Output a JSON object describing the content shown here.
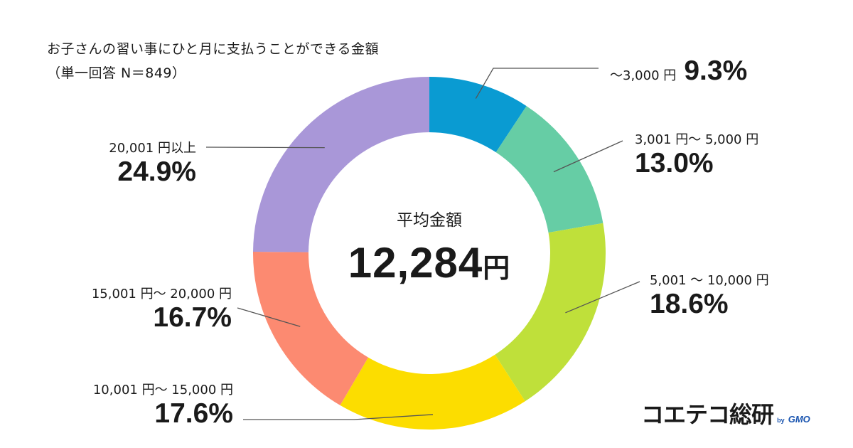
{
  "title_line1": "お子さんの習い事にひと月に支払うことができる金額",
  "title_line2": "（単一回答 N＝849）",
  "center_label": "平均金額",
  "center_value": "12,284",
  "center_unit": "円",
  "logo_text": "コエテコ総研",
  "logo_by": "by",
  "logo_gmo": "GMO",
  "chart_data": {
    "type": "pie",
    "title": "お子さんの習い事にひと月に支払うことができる金額",
    "subtitle": "（単一回答 N＝849）",
    "categories": [
      "～3,000 円",
      "3,001 円～ 5,000 円",
      "5,001 ～ 10,000 円",
      "10,001 円～ 15,000 円",
      "15,001 円～ 20,000 円",
      "20,001 円以上"
    ],
    "values": [
      9.3,
      13.0,
      18.6,
      17.6,
      16.7,
      24.9
    ],
    "labels": [
      "9.3%",
      "13.0%",
      "18.6%",
      "17.6%",
      "16.7%",
      "24.9%"
    ],
    "colors": [
      "#0a9bd2",
      "#66cda5",
      "#bfe03a",
      "#fcdd00",
      "#fc8a71",
      "#a997d8"
    ],
    "donut": true,
    "center_annotation": "平均金額 12,284円"
  }
}
